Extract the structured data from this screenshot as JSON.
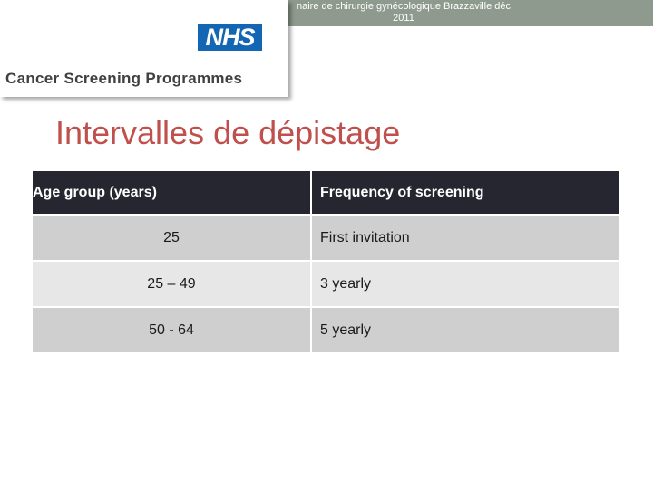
{
  "header": {
    "caption": "naire de chirurgie gynécologique Brazzaville déc\n2011"
  },
  "logo": {
    "mark": "NHS",
    "programme": "Cancer Screening Programmes"
  },
  "slide": {
    "title": "Intervalles de dépistage"
  },
  "table": {
    "headers": [
      "Age group (years)",
      "Frequency of screening"
    ],
    "rows": [
      [
        "25",
        "First invitation"
      ],
      [
        "25 – 49",
        "3 yearly"
      ],
      [
        "50 - 64",
        "5 yearly"
      ]
    ]
  },
  "colors": {
    "title": "#c0504d",
    "header_row": "#262630",
    "row_dark": "#cfcfcf",
    "row_light": "#e7e7e7",
    "topbar": "#8f9a8f",
    "nhs_blue": "#1366b3"
  }
}
